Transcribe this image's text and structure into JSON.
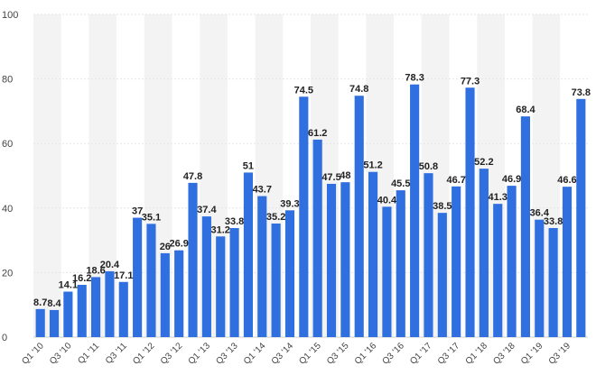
{
  "chart_data": {
    "type": "bar",
    "title": "",
    "xlabel": "",
    "ylabel": "",
    "ylim": [
      0,
      100
    ],
    "yticks": [
      0,
      20,
      40,
      60,
      80,
      100
    ],
    "grid": true,
    "bar_color": "#2f6fdf",
    "band_color": "#f3f3f3",
    "categories": [
      "Q1 '10",
      "Q2 '10",
      "Q3 '10",
      "Q4 '10",
      "Q1 '11",
      "Q2 '11",
      "Q3 '11",
      "Q4 '11",
      "Q1 '12",
      "Q2 '12",
      "Q3 '12",
      "Q4 '12",
      "Q1 '13",
      "Q2 '13",
      "Q3 '13",
      "Q4 '13",
      "Q1 '14",
      "Q2 '14",
      "Q3 '14",
      "Q4 '14",
      "Q1 '15",
      "Q2 '15",
      "Q3 '15",
      "Q4 '15",
      "Q1 '16",
      "Q2 '16",
      "Q3 '16",
      "Q4 '16",
      "Q1 '17",
      "Q2 '17",
      "Q3 '17",
      "Q4 '17",
      "Q1 '18",
      "Q2 '18",
      "Q3 '18",
      "Q4 '18",
      "Q1 '19",
      "Q2 '19",
      "Q3 '19",
      "Q4 '19"
    ],
    "values": [
      8.7,
      8.4,
      14.1,
      16.2,
      18.6,
      20.4,
      17.1,
      37,
      35.1,
      26,
      26.9,
      47.8,
      37.4,
      31.2,
      33.8,
      51,
      43.7,
      35.2,
      39.3,
      74.5,
      61.2,
      47.5,
      48,
      74.8,
      51.2,
      40.4,
      45.5,
      78.3,
      50.8,
      38.5,
      46.7,
      77.3,
      52.2,
      41.3,
      46.9,
      68.4,
      36.4,
      33.8,
      46.6,
      73.8
    ],
    "labels": [
      "8.7",
      "8.4",
      "14.1",
      "16.2",
      "18.6",
      "20.4",
      "17.1",
      "37",
      "35.1",
      "26",
      "26.9",
      "47.8",
      "37.4",
      "31.2",
      "33.8",
      "51",
      "43.7",
      "35.2",
      "39.3",
      "74.5",
      "61.2",
      "47.5",
      "48",
      "74.8",
      "51.2",
      "40.4",
      "45.5",
      "78.3",
      "50.8",
      "38.5",
      "46.7",
      "77.3",
      "52.2",
      "41.3",
      "46.9",
      "68.4",
      "36.4",
      "33.8",
      "46.6",
      "73.8"
    ],
    "xtick_labels": [
      "Q1 '10",
      "Q3 '10",
      "Q1 '11",
      "Q3 '11",
      "Q1 '12",
      "Q3 '12",
      "Q1 '13",
      "Q3 '13",
      "Q1 '14",
      "Q3 '14",
      "Q1 '15",
      "Q3 '15",
      "Q1 '16",
      "Q3 '16",
      "Q1 '17",
      "Q3 '17",
      "Q1 '18",
      "Q3 '18",
      "Q1 '19",
      "Q3 '19"
    ]
  }
}
